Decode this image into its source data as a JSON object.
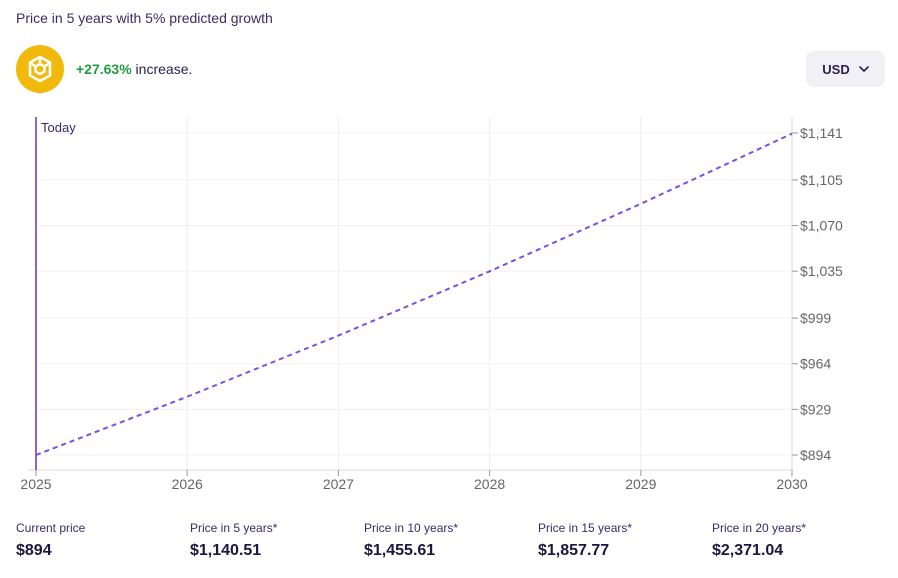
{
  "header": {
    "title": "Price in 5 years with 5% predicted growth",
    "increase_pct": "+27.63%",
    "increase_suffix": " increase.",
    "currency": "USD",
    "coin_icon": "bnb-coin-icon"
  },
  "colors": {
    "accent_purple": "#7b4fe0",
    "today_line": "#8a65c9",
    "positive_green": "#1f9d3f",
    "coin_yellow": "#f0b90b"
  },
  "chart_data": {
    "type": "line",
    "title": "",
    "xlabel": "",
    "ylabel": "",
    "today_label": "Today",
    "x": [
      2025,
      2026,
      2027,
      2028,
      2029,
      2030
    ],
    "series": [
      {
        "values": [
          894,
          938.7,
          985.6,
          1034.9,
          1086.7,
          1140.5
        ],
        "style": "dashed"
      }
    ],
    "xlim": [
      2025,
      2030
    ],
    "ylim": [
      894,
      1141
    ],
    "x_ticks": [
      "2025",
      "2026",
      "2027",
      "2028",
      "2029",
      "2030"
    ],
    "y_ticks": [
      894,
      929,
      964,
      999,
      1035,
      1070,
      1105,
      1141
    ],
    "y_tick_labels": [
      "$894",
      "$929",
      "$964",
      "$999",
      "$1,035",
      "$1,070",
      "$1,105",
      "$1,141"
    ],
    "grid": true,
    "y_axis_position": "right"
  },
  "stats": [
    {
      "label": "Current price",
      "value": "$894"
    },
    {
      "label": "Price in 5 years*",
      "value": "$1,140.51"
    },
    {
      "label": "Price in 10 years*",
      "value": "$1,455.61"
    },
    {
      "label": "Price in 15 years*",
      "value": "$1,857.77"
    },
    {
      "label": "Price in 20 years*",
      "value": "$2,371.04"
    }
  ]
}
